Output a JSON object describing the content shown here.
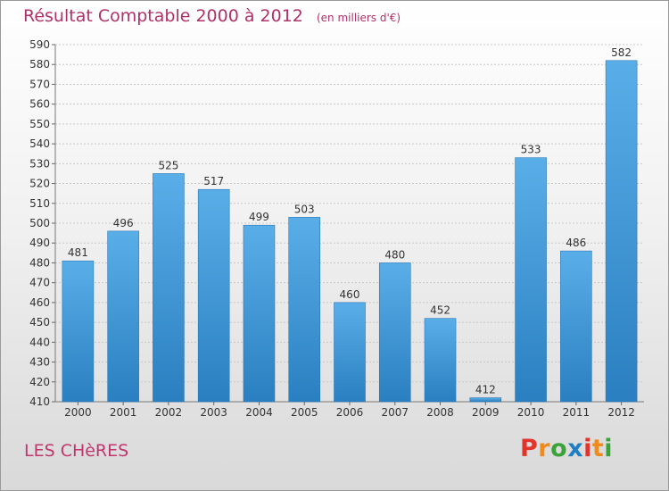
{
  "header": {
    "title": "Résultat Comptable 2000 à 2012",
    "unit": "(en milliers d'€)"
  },
  "footer": {
    "place": "LES CHèRES",
    "brand_letters": [
      "P",
      "r",
      "o",
      "x",
      "i",
      "t",
      "i"
    ],
    "brand_colors": [
      "#e2342a",
      "#f08a1a",
      "#3aa33a",
      "#1f7ec4",
      "#e2342a",
      "#f08a1a",
      "#3aa33a"
    ]
  },
  "colors": {
    "bar_top": "#5aaee8",
    "bar_bottom": "#2a7fc0",
    "grid": "#c8c8c8",
    "title": "#b0306a"
  },
  "chart_data": {
    "type": "bar",
    "title": "Résultat Comptable 2000 à 2012",
    "subtitle": "(en milliers d'€)",
    "xlabel": "",
    "ylabel": "",
    "categories": [
      "2000",
      "2001",
      "2002",
      "2003",
      "2004",
      "2005",
      "2006",
      "2007",
      "2008",
      "2009",
      "2010",
      "2011",
      "2012"
    ],
    "values": [
      481,
      496,
      525,
      517,
      499,
      503,
      460,
      480,
      452,
      412,
      533,
      486,
      582
    ],
    "ylim": [
      410,
      590
    ],
    "ytick_step": 10,
    "grid": true
  }
}
